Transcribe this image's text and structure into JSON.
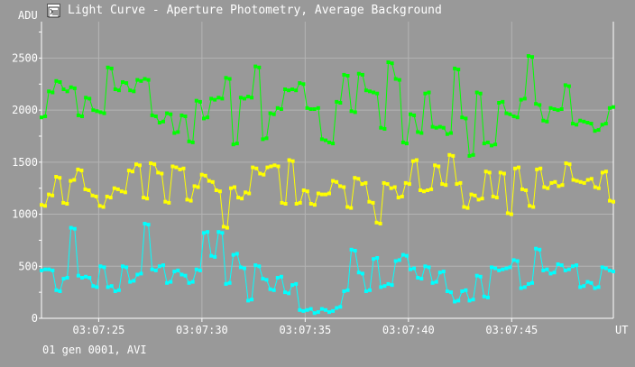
{
  "window": {
    "title": "Light Curve - Aperture Photometry, Average Background",
    "footer_text": "01 gen 0001, AVI"
  },
  "chart_data": {
    "type": "line",
    "ylabel": "ADU",
    "xlabel": "UT",
    "ylim": [
      0,
      2850
    ],
    "yticks": [
      0,
      500,
      1000,
      1500,
      2000,
      2500
    ],
    "xlim": [
      0,
      36
    ],
    "xticks": [
      {
        "value": 3.6,
        "label": "03:07:25"
      },
      {
        "value": 10.1,
        "label": "03:07:30"
      },
      {
        "value": 16.6,
        "label": "03:07:35"
      },
      {
        "value": 23.1,
        "label": "03:07:40"
      },
      {
        "value": 29.6,
        "label": "03:07:45"
      }
    ],
    "grid": true,
    "colors": {
      "background": "#999999",
      "grid": "#b4b4b4",
      "axis": "#ffffff",
      "series_green": "#00ff00",
      "series_yellow": "#ffff00",
      "series_cyan": "#00ffff"
    },
    "series": [
      {
        "color": "#00ff00",
        "values": [
          1930,
          1940,
          2180,
          2170,
          2280,
          2270,
          2200,
          2180,
          2220,
          2210,
          1950,
          1940,
          2120,
          2110,
          2000,
          1990,
          1980,
          1970,
          2410,
          2400,
          2200,
          2190,
          2270,
          2260,
          2190,
          2180,
          2290,
          2280,
          2300,
          2290,
          1950,
          1940,
          1880,
          1890,
          1970,
          1960,
          1780,
          1790,
          1950,
          1940,
          1700,
          1690,
          2090,
          2080,
          1920,
          1930,
          2110,
          2100,
          2120,
          2110,
          2310,
          2300,
          1670,
          1680,
          2120,
          2110,
          2130,
          2120,
          2420,
          2410,
          1720,
          1730,
          1970,
          1960,
          2020,
          2010,
          2200,
          2190,
          2200,
          2190,
          2260,
          2250,
          2020,
          2010,
          2010,
          2020,
          1720,
          1710,
          1690,
          1680,
          2080,
          2070,
          2340,
          2330,
          1990,
          1980,
          2350,
          2340,
          2190,
          2180,
          2170,
          2160,
          1830,
          1820,
          2460,
          2450,
          2300,
          2290,
          1690,
          1680,
          1960,
          1950,
          1790,
          1780,
          2160,
          2170,
          1840,
          1830,
          1840,
          1830,
          1770,
          1780,
          2400,
          2390,
          1930,
          1920,
          1560,
          1570,
          2170,
          2160,
          1680,
          1690,
          1660,
          1670,
          2070,
          2080,
          1970,
          1960,
          1940,
          1930,
          2100,
          2110,
          2520,
          2510,
          2060,
          2050,
          1900,
          1890,
          2020,
          2010,
          2000,
          2010,
          2240,
          2230,
          1870,
          1860,
          1900,
          1890,
          1880,
          1870,
          1800,
          1810,
          1860,
          1870,
          2020,
          2030
        ]
      },
      {
        "color": "#ffff00",
        "values": [
          1090,
          1080,
          1190,
          1180,
          1360,
          1350,
          1110,
          1100,
          1320,
          1330,
          1430,
          1420,
          1240,
          1230,
          1180,
          1170,
          1080,
          1070,
          1170,
          1160,
          1250,
          1240,
          1220,
          1210,
          1420,
          1410,
          1480,
          1470,
          1160,
          1150,
          1490,
          1480,
          1400,
          1390,
          1120,
          1110,
          1460,
          1450,
          1430,
          1440,
          1140,
          1130,
          1270,
          1260,
          1380,
          1370,
          1320,
          1310,
          1230,
          1220,
          880,
          870,
          1250,
          1260,
          1160,
          1150,
          1210,
          1200,
          1450,
          1440,
          1390,
          1380,
          1450,
          1460,
          1470,
          1460,
          1110,
          1100,
          1520,
          1510,
          1100,
          1110,
          1230,
          1220,
          1100,
          1090,
          1200,
          1190,
          1190,
          1200,
          1320,
          1310,
          1270,
          1260,
          1070,
          1060,
          1350,
          1340,
          1290,
          1300,
          1120,
          1110,
          920,
          910,
          1300,
          1290,
          1250,
          1260,
          1160,
          1170,
          1300,
          1290,
          1510,
          1520,
          1230,
          1220,
          1230,
          1240,
          1470,
          1460,
          1290,
          1280,
          1570,
          1560,
          1290,
          1300,
          1070,
          1060,
          1190,
          1180,
          1140,
          1150,
          1410,
          1400,
          1170,
          1160,
          1400,
          1390,
          1010,
          1000,
          1440,
          1450,
          1240,
          1230,
          1080,
          1070,
          1430,
          1440,
          1260,
          1250,
          1300,
          1310,
          1270,
          1280,
          1490,
          1480,
          1330,
          1320,
          1310,
          1300,
          1330,
          1340,
          1260,
          1250,
          1400,
          1410,
          1130,
          1120
        ]
      },
      {
        "color": "#00ffff",
        "values": [
          460,
          470,
          470,
          460,
          270,
          260,
          380,
          390,
          870,
          860,
          410,
          390,
          400,
          390,
          310,
          300,
          500,
          490,
          300,
          310,
          260,
          270,
          500,
          490,
          350,
          360,
          420,
          430,
          910,
          900,
          470,
          460,
          500,
          510,
          340,
          350,
          450,
          460,
          420,
          410,
          340,
          350,
          470,
          460,
          820,
          830,
          600,
          590,
          830,
          820,
          330,
          340,
          610,
          620,
          490,
          480,
          170,
          180,
          510,
          500,
          380,
          370,
          280,
          270,
          390,
          400,
          250,
          240,
          320,
          330,
          80,
          70,
          80,
          90,
          50,
          60,
          90,
          80,
          60,
          70,
          100,
          110,
          260,
          270,
          660,
          650,
          440,
          430,
          260,
          270,
          570,
          580,
          300,
          310,
          330,
          320,
          550,
          560,
          610,
          600,
          470,
          480,
          390,
          380,
          500,
          490,
          340,
          350,
          440,
          450,
          260,
          250,
          160,
          170,
          260,
          270,
          170,
          180,
          410,
          400,
          210,
          200,
          490,
          480,
          460,
          470,
          480,
          490,
          560,
          550,
          290,
          300,
          330,
          340,
          670,
          660,
          460,
          470,
          430,
          440,
          520,
          510,
          460,
          470,
          500,
          510,
          300,
          310,
          350,
          340,
          290,
          300,
          490,
          480,
          460,
          450
        ]
      }
    ]
  }
}
